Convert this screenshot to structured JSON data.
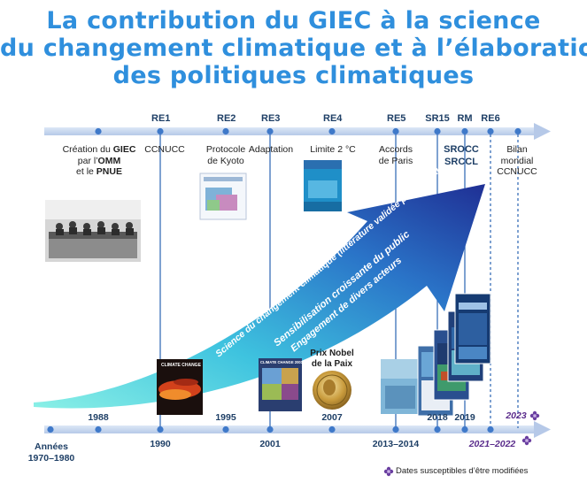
{
  "title": {
    "line1": "La contribution du GIEC à la science",
    "line2": "du changement climatique et à l’élaboration",
    "line3": "des politiques climatiques"
  },
  "top_events": {
    "creation_l1": "Création du ",
    "creation_giec": "GIEC",
    "creation_l2a": "par l’",
    "creation_omm": "OMM",
    "creation_l3a": "et le ",
    "creation_pnue": "PNUE",
    "ccnucc": "CCNUCC",
    "protocole_l1": "Protocole",
    "protocole_l2": "de Kyoto",
    "adaptation": "Adaptation",
    "limite": "Limite 2 °C",
    "accords_l1": "Accords",
    "accords_l2": "de Paris",
    "srocc": "SROCC",
    "srccl": "SRCCL",
    "bilan_l1": "Bilan",
    "bilan_l2": "mondial",
    "bilan_l3": "CCNUCC"
  },
  "reports": [
    "RE1",
    "RE2",
    "RE3",
    "RE4",
    "RE5",
    "SR15",
    "RM",
    "RE6"
  ],
  "bottom_years": {
    "y1988": "1988",
    "y1990": "1990",
    "y1995": "1995",
    "y2001": "2001",
    "y2007": "2007",
    "y2013": "2013–2014",
    "y2018": "2018",
    "y2019": "2019",
    "y2021": "2021–2022",
    "y2023": "2023",
    "annees_l1": "Années",
    "annees_l2": "1970–1980"
  },
  "nobel_l1": "Prix Nobel",
  "nobel_l2": "de la Paix",
  "arrow_text": {
    "line1": "Science du changement climatique (littérature validée par des pairs)",
    "line2": "Sensibilisation croissante du public",
    "line3": "Engagement de divers acteurs"
  },
  "cover_climate_change": "CLIMATE CHANGE",
  "cover_climate_change_2001": "CLIMATE CHANGE 2001",
  "note": "Dates susceptibles d’être modifiées",
  "colors": {
    "title": "#2f8fdd",
    "timeline": "#c9d8ef",
    "dot": "#3f79c9",
    "arrow_start": "#67e2d8",
    "arrow_end": "#1f3a9c",
    "note_flower": "#6a3fa0"
  }
}
